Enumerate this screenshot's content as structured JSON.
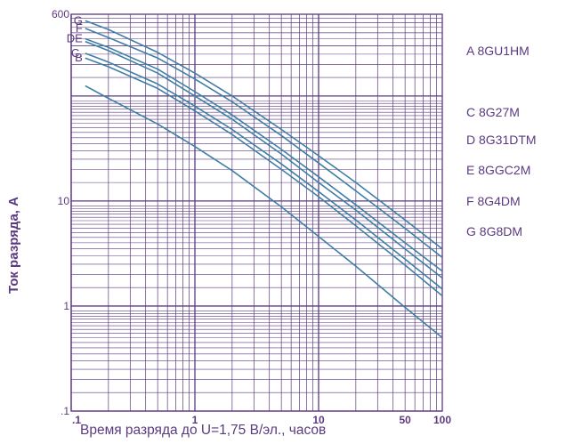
{
  "chart_data": {
    "type": "line",
    "title": "",
    "xlabel": "Время разряда до U=1,75 В/эл., часов",
    "ylabel": "Ток  разряда, А",
    "x_scale": "log",
    "y_scale": "log",
    "xlim": [
      0.1,
      100
    ],
    "ylim": [
      0.1,
      600
    ],
    "x_ticks": [
      {
        "value": 0.1,
        "label": ".1"
      },
      {
        "value": 1,
        "label": "1"
      },
      {
        "value": 10,
        "label": "10"
      },
      {
        "value": 50,
        "label": "50"
      },
      {
        "value": 100,
        "label": "100"
      }
    ],
    "y_ticks": [
      {
        "value": 0.1,
        "label": ".1"
      },
      {
        "value": 1,
        "label": "1"
      },
      {
        "value": 10,
        "label": "10"
      },
      {
        "value": 600,
        "label": "600"
      }
    ],
    "grid": true,
    "legend": [
      {
        "key": "A",
        "text": "A 8GU1HM"
      },
      {
        "key": "C",
        "text": "C 8G27M"
      },
      {
        "key": "D",
        "text": "D 8G31DTM"
      },
      {
        "key": "E",
        "text": "E 8GGC2M"
      },
      {
        "key": "F",
        "text": "F 8G4DM"
      },
      {
        "key": "G",
        "text": "G 8G8DM"
      }
    ],
    "legend_position": "right",
    "series": [
      {
        "name": "G",
        "color": "#3f7ea6",
        "x": [
          0.13,
          0.2,
          0.5,
          1,
          2,
          5,
          10,
          20,
          50,
          100
        ],
        "y": [
          520,
          430,
          260,
          165,
          100,
          48,
          27,
          15,
          6.6,
          3.5
        ]
      },
      {
        "name": "F",
        "color": "#3f7ea6",
        "x": [
          0.13,
          0.2,
          0.5,
          1,
          2,
          5,
          10,
          20,
          50,
          100
        ],
        "y": [
          440,
          360,
          230,
          145,
          88,
          42,
          23,
          12.5,
          5.5,
          2.9
        ]
      },
      {
        "name": "E",
        "color": "#3f7ea6",
        "x": [
          0.13,
          0.2,
          0.5,
          1,
          2,
          5,
          10,
          20,
          50,
          100
        ],
        "y": [
          350,
          290,
          180,
          110,
          66,
          31,
          17,
          9.2,
          4.0,
          2.15
        ]
      },
      {
        "name": "D",
        "color": "#3f7ea6",
        "x": [
          0.13,
          0.2,
          0.5,
          1,
          2,
          5,
          10,
          20,
          50,
          100
        ],
        "y": [
          330,
          270,
          165,
          100,
          60,
          28,
          15,
          8.2,
          3.5,
          1.85
        ]
      },
      {
        "name": "C",
        "color": "#3f7ea6",
        "x": [
          0.13,
          0.2,
          0.5,
          1,
          2,
          5,
          10,
          20,
          50,
          100
        ],
        "y": [
          255,
          210,
          130,
          80,
          48,
          22.5,
          12.3,
          6.6,
          2.8,
          1.45
        ]
      },
      {
        "name": "B",
        "color": "#3f7ea6",
        "x": [
          0.13,
          0.2,
          0.5,
          1,
          2,
          5,
          10,
          20,
          50,
          100
        ],
        "y": [
          230,
          190,
          118,
          72,
          43,
          20,
          11,
          5.8,
          2.45,
          1.25
        ]
      },
      {
        "name": "A",
        "color": "#3f7ea6",
        "x": [
          0.13,
          0.2,
          0.5,
          1,
          2,
          5,
          10,
          20,
          50,
          100
        ],
        "y": [
          125,
          95,
          54,
          33,
          19.5,
          8.8,
          4.6,
          2.4,
          0.97,
          0.5
        ]
      }
    ],
    "curve_labels": [
      {
        "text": "G",
        "series": "G"
      },
      {
        "text": "F",
        "series": "F"
      },
      {
        "text": "DE",
        "series": "E"
      },
      {
        "text": "C.",
        "series": "C"
      },
      {
        "text": "B",
        "series": "B"
      }
    ]
  }
}
